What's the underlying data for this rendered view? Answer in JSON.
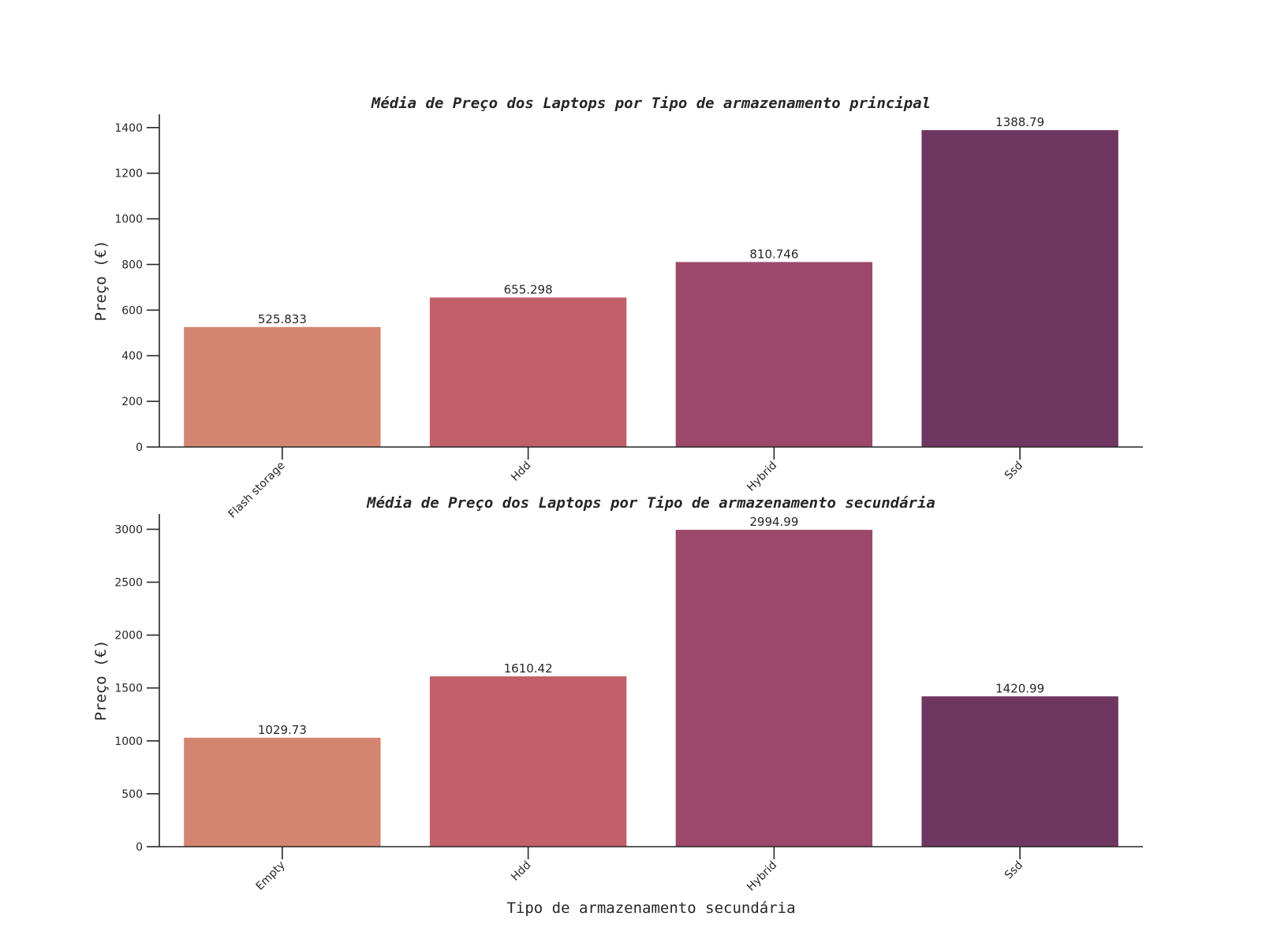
{
  "colors": [
    "#d4856f",
    "#c2606a",
    "#9c486b",
    "#703662"
  ],
  "chart_data": [
    {
      "type": "bar",
      "title": "Média de Preço dos Laptops por Tipo de armazenamento principal",
      "xlabel": "",
      "ylabel": "Preço (€)",
      "categories": [
        "Flash storage",
        "Hdd",
        "Hybrid",
        "Ssd"
      ],
      "values": [
        525.833,
        655.298,
        810.746,
        1388.79
      ],
      "value_labels": [
        "525.833",
        "655.298",
        "810.746",
        "1388.79"
      ],
      "yticks": [
        0,
        200,
        400,
        600,
        800,
        1000,
        1200,
        1400
      ],
      "ylim": [
        0,
        1458.2
      ],
      "grid": false,
      "legend": "none"
    },
    {
      "type": "bar",
      "title": "Média de Preço dos Laptops por Tipo de armazenamento secundária",
      "xlabel": "Tipo de armazenamento secundária",
      "ylabel": "Preço (€)",
      "categories": [
        "Empty",
        "Hdd",
        "Hybrid",
        "Ssd"
      ],
      "values": [
        1029.73,
        1610.42,
        2994.99,
        1420.99
      ],
      "value_labels": [
        "1029.73",
        "1610.42",
        "2994.99",
        "1420.99"
      ],
      "yticks": [
        0,
        500,
        1000,
        1500,
        2000,
        2500,
        3000
      ],
      "ylim": [
        0,
        3144.7
      ],
      "grid": false,
      "legend": "none"
    }
  ]
}
